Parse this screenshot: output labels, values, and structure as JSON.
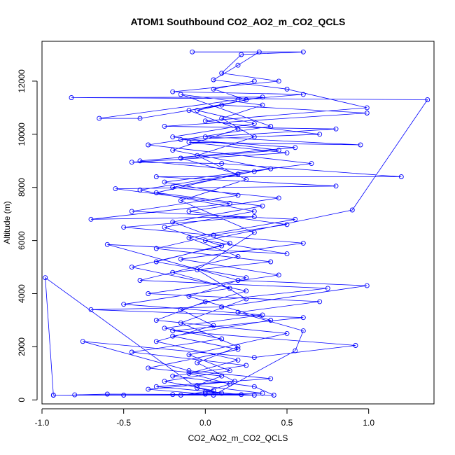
{
  "chart_data": {
    "type": "scatter",
    "title": "ATOM1 Southbound CO2_AO2_m_CO2_QCLS",
    "xlabel": "CO2_AO2_m_CO2_QCLS",
    "ylabel": "Altitude (m)",
    "xlim": [
      -1.0,
      1.4
    ],
    "ylim": [
      -150,
      13500
    ],
    "x_ticks": [
      -1.0,
      -0.5,
      0.0,
      0.5,
      1.0
    ],
    "x_tick_labels": [
      "-1.0",
      "-0.5",
      "0.0",
      "0.5",
      "1.0"
    ],
    "y_ticks": [
      0,
      2000,
      4000,
      6000,
      8000,
      10000,
      12000
    ],
    "y_tick_labels": [
      "0",
      "2000",
      "4000",
      "6000",
      "8000",
      "10000",
      "12000"
    ],
    "grid": false,
    "series_color": "#0000ff",
    "series": [
      {
        "name": "CO2_AO2_m_CO2_QCLS",
        "marker": "open-circle",
        "line": true,
        "points": [
          {
            "x": -0.93,
            "y": 180
          },
          {
            "x": -0.2,
            "y": 200
          },
          {
            "x": 0.1,
            "y": 250
          },
          {
            "x": -0.05,
            "y": 450
          },
          {
            "x": -0.98,
            "y": 4600
          },
          {
            "x": -0.93,
            "y": 180
          },
          {
            "x": -0.5,
            "y": 180
          },
          {
            "x": 0.3,
            "y": 180
          },
          {
            "x": 0.0,
            "y": 300
          },
          {
            "x": 0.15,
            "y": 600
          },
          {
            "x": -0.1,
            "y": 1000
          },
          {
            "x": 0.2,
            "y": 1500
          },
          {
            "x": -0.3,
            "y": 2200
          },
          {
            "x": 0.05,
            "y": 2800
          },
          {
            "x": -0.15,
            "y": 3400
          },
          {
            "x": 0.25,
            "y": 4100
          },
          {
            "x": -0.45,
            "y": 5000
          },
          {
            "x": 0.1,
            "y": 5800
          },
          {
            "x": -0.25,
            "y": 6500
          },
          {
            "x": 0.3,
            "y": 7100
          },
          {
            "x": -0.4,
            "y": 7900
          },
          {
            "x": 0.4,
            "y": 8700
          },
          {
            "x": -0.2,
            "y": 9400
          },
          {
            "x": 0.2,
            "y": 10200
          },
          {
            "x": -0.1,
            "y": 10900
          },
          {
            "x": 0.35,
            "y": 11400
          },
          {
            "x": -0.82,
            "y": 11380
          },
          {
            "x": 1.36,
            "y": 11300
          },
          {
            "x": 0.9,
            "y": 7150
          },
          {
            "x": 0.0,
            "y": 6000
          },
          {
            "x": 0.5,
            "y": 5500
          },
          {
            "x": -0.6,
            "y": 5850
          },
          {
            "x": 0.2,
            "y": 4500
          },
          {
            "x": 0.99,
            "y": 4300
          },
          {
            "x": 0.1,
            "y": 3500
          },
          {
            "x": -0.7,
            "y": 3400
          },
          {
            "x": 0.6,
            "y": 3100
          },
          {
            "x": -0.2,
            "y": 2600
          },
          {
            "x": 0.92,
            "y": 2050
          },
          {
            "x": 0.3,
            "y": 1600
          },
          {
            "x": -0.75,
            "y": 2200
          },
          {
            "x": -0.1,
            "y": 1100
          },
          {
            "x": 0.4,
            "y": 800
          },
          {
            "x": -0.3,
            "y": 500
          },
          {
            "x": 0.22,
            "y": 200
          },
          {
            "x": -0.6,
            "y": 220
          },
          {
            "x": -0.8,
            "y": 190
          },
          {
            "x": 0.05,
            "y": 180
          },
          {
            "x": 0.55,
            "y": 1850
          },
          {
            "x": 0.6,
            "y": 2600
          },
          {
            "x": 0.2,
            "y": 3300
          },
          {
            "x": 0.7,
            "y": 3700
          },
          {
            "x": -0.35,
            "y": 4000
          },
          {
            "x": 0.45,
            "y": 4700
          },
          {
            "x": -0.15,
            "y": 5300
          },
          {
            "x": 0.6,
            "y": 5900
          },
          {
            "x": -0.5,
            "y": 6500
          },
          {
            "x": 0.3,
            "y": 6900
          },
          {
            "x": -0.7,
            "y": 6800
          },
          {
            "x": 0.15,
            "y": 7400
          },
          {
            "x": -0.55,
            "y": 7950
          },
          {
            "x": 0.8,
            "y": 8050
          },
          {
            "x": -0.3,
            "y": 8400
          },
          {
            "x": 1.2,
            "y": 8400
          },
          {
            "x": 0.1,
            "y": 8900
          },
          {
            "x": -0.45,
            "y": 8950
          },
          {
            "x": 0.5,
            "y": 9300
          },
          {
            "x": -0.1,
            "y": 9700
          },
          {
            "x": 0.95,
            "y": 9600
          },
          {
            "x": 0.0,
            "y": 9900
          },
          {
            "x": 0.8,
            "y": 10200
          },
          {
            "x": -0.25,
            "y": 10300
          },
          {
            "x": 0.99,
            "y": 10800
          },
          {
            "x": 0.1,
            "y": 11100
          },
          {
            "x": -0.4,
            "y": 10600
          },
          {
            "x": -0.65,
            "y": 10600
          },
          {
            "x": 0.2,
            "y": 11300
          },
          {
            "x": 0.6,
            "y": 11500
          },
          {
            "x": -0.2,
            "y": 11600
          },
          {
            "x": 0.45,
            "y": 12000
          },
          {
            "x": 0.1,
            "y": 12300
          },
          {
            "x": 0.22,
            "y": 13000
          },
          {
            "x": 0.6,
            "y": 13100
          },
          {
            "x": -0.08,
            "y": 13100
          },
          {
            "x": 0.33,
            "y": 13100
          },
          {
            "x": 0.2,
            "y": 12600
          },
          {
            "x": 0.05,
            "y": 12050
          },
          {
            "x": 0.5,
            "y": 11700
          },
          {
            "x": 0.99,
            "y": 11000
          },
          {
            "x": 0.0,
            "y": 10500
          },
          {
            "x": 0.7,
            "y": 10000
          },
          {
            "x": -0.15,
            "y": 9800
          },
          {
            "x": 0.55,
            "y": 9500
          },
          {
            "x": -0.4,
            "y": 9000
          },
          {
            "x": 0.3,
            "y": 8600
          },
          {
            "x": -0.2,
            "y": 8000
          },
          {
            "x": 0.45,
            "y": 7600
          },
          {
            "x": -0.1,
            "y": 7100
          },
          {
            "x": 0.5,
            "y": 6600
          },
          {
            "x": 0.05,
            "y": 6200
          },
          {
            "x": -0.3,
            "y": 5700
          },
          {
            "x": 0.4,
            "y": 5200
          },
          {
            "x": -0.2,
            "y": 4800
          },
          {
            "x": 0.15,
            "y": 4200
          },
          {
            "x": -0.5,
            "y": 3600
          },
          {
            "x": 0.35,
            "y": 3200
          },
          {
            "x": -0.25,
            "y": 2700
          },
          {
            "x": 0.1,
            "y": 2300
          },
          {
            "x": -0.45,
            "y": 1800
          },
          {
            "x": 0.25,
            "y": 1300
          },
          {
            "x": -0.2,
            "y": 900
          },
          {
            "x": 0.3,
            "y": 500
          },
          {
            "x": 0.42,
            "y": 180
          },
          {
            "x": 0.0,
            "y": 220
          },
          {
            "x": -0.35,
            "y": 400
          },
          {
            "x": 0.18,
            "y": 700
          },
          {
            "x": -0.05,
            "y": 1400
          },
          {
            "x": 0.2,
            "y": 2000
          },
          {
            "x": -0.15,
            "y": 2900
          },
          {
            "x": 0.25,
            "y": 3800
          },
          {
            "x": -0.05,
            "y": 4900
          },
          {
            "x": 0.3,
            "y": 6300
          },
          {
            "x": -0.15,
            "y": 7500
          },
          {
            "x": 0.25,
            "y": 8300
          },
          {
            "x": -0.05,
            "y": 9200
          },
          {
            "x": 0.3,
            "y": 9900
          },
          {
            "x": 0.1,
            "y": 10600
          },
          {
            "x": 0.35,
            "y": 11100
          },
          {
            "x": -0.15,
            "y": 11500
          },
          {
            "x": 0.4,
            "y": 10300
          },
          {
            "x": -0.35,
            "y": 9600
          },
          {
            "x": 0.65,
            "y": 8900
          },
          {
            "x": -0.25,
            "y": 8200
          },
          {
            "x": 0.2,
            "y": 7700
          },
          {
            "x": -0.45,
            "y": 7100
          },
          {
            "x": 0.55,
            "y": 6800
          },
          {
            "x": -0.1,
            "y": 6100
          },
          {
            "x": 0.2,
            "y": 5400
          },
          {
            "x": -0.4,
            "y": 4500
          },
          {
            "x": 0.75,
            "y": 4200
          },
          {
            "x": 0.0,
            "y": 3700
          },
          {
            "x": -0.3,
            "y": 3000
          },
          {
            "x": 0.5,
            "y": 2500
          },
          {
            "x": -0.1,
            "y": 1700
          },
          {
            "x": 0.15,
            "y": 1100
          },
          {
            "x": -0.25,
            "y": 700
          },
          {
            "x": 0.05,
            "y": 350
          },
          {
            "x": -0.15,
            "y": 180
          },
          {
            "x": 0.35,
            "y": 250
          },
          {
            "x": -0.05,
            "y": 550
          },
          {
            "x": 0.1,
            "y": 900
          },
          {
            "x": -0.35,
            "y": 1200
          },
          {
            "x": 0.2,
            "y": 1900
          },
          {
            "x": -0.2,
            "y": 2400
          },
          {
            "x": 0.4,
            "y": 3000
          },
          {
            "x": -0.1,
            "y": 3900
          },
          {
            "x": 0.25,
            "y": 4600
          },
          {
            "x": -0.3,
            "y": 5200
          },
          {
            "x": 0.15,
            "y": 5900
          },
          {
            "x": -0.2,
            "y": 6700
          },
          {
            "x": 0.35,
            "y": 7300
          },
          {
            "x": -0.3,
            "y": 7800
          },
          {
            "x": 0.2,
            "y": 8500
          },
          {
            "x": -0.15,
            "y": 9100
          },
          {
            "x": 0.45,
            "y": 9400
          },
          {
            "x": -0.2,
            "y": 9900
          },
          {
            "x": 0.3,
            "y": 10400
          },
          {
            "x": -0.05,
            "y": 10900
          },
          {
            "x": 0.25,
            "y": 11300
          },
          {
            "x": 0.05,
            "y": 11700
          },
          {
            "x": 0.3,
            "y": 12000
          }
        ]
      }
    ]
  }
}
